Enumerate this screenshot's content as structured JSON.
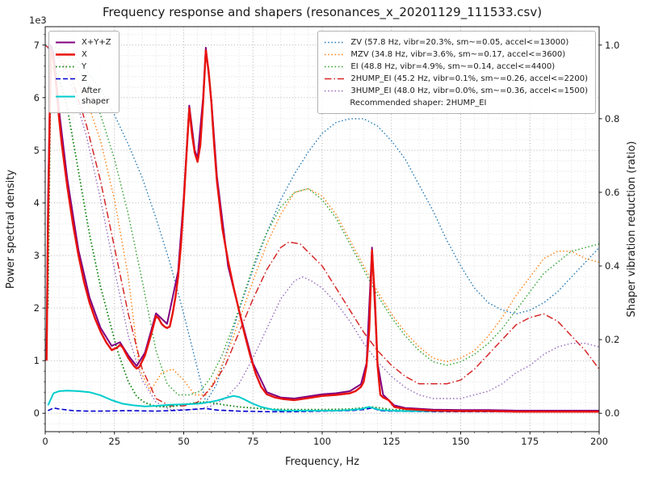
{
  "chart_data": {
    "type": "line",
    "title": "Frequency response and shapers (resonances_x_20201129_111533.csv)",
    "xlabel": "Frequency, Hz",
    "ylabel_left": "Power spectral density",
    "ylabel_right": "Shaper vibration reduction (ratio)",
    "y_left_multiplier": "1e3",
    "xlim": [
      0,
      200
    ],
    "x_ticks": [
      0,
      25,
      50,
      75,
      100,
      125,
      150,
      175,
      200
    ],
    "ylim_left": [
      0,
      7
    ],
    "y_ticks_left": [
      0,
      1,
      2,
      3,
      4,
      5,
      6,
      7
    ],
    "ylim_right": [
      0,
      1.0
    ],
    "y_ticks_right": [
      0.0,
      0.2,
      0.4,
      0.6,
      0.8,
      1.0
    ],
    "grid": true,
    "grid_major_color": "#a6a6a6",
    "grid_minor_color": "#d8d8d8",
    "legend_note": "Recommended shaper: 2HUMP_EI",
    "psd_y_unit": "1e3",
    "psd_series": [
      {
        "name": "x-plus-y-plus-z",
        "label": "X+Y+Z",
        "color": "#800080",
        "style": "solid",
        "width": 2,
        "axis": "left",
        "zorder": 5,
        "x": [
          0.5,
          1,
          2,
          3,
          5,
          8,
          12,
          16,
          20,
          24,
          27,
          30,
          33,
          36,
          40,
          44,
          48,
          50,
          52,
          54,
          55,
          57,
          58,
          60,
          62,
          66,
          70,
          75,
          80,
          85,
          90,
          95,
          100,
          105,
          110,
          114,
          116,
          118,
          120,
          122,
          126,
          130,
          140,
          150,
          160,
          170,
          180,
          190,
          200
        ],
        "y": [
          1.2,
          4.0,
          7.0,
          6.85,
          5.75,
          4.45,
          3.1,
          2.2,
          1.62,
          1.28,
          1.35,
          1.1,
          0.9,
          1.15,
          1.9,
          1.7,
          2.7,
          4.1,
          5.85,
          5.0,
          4.85,
          6.0,
          6.95,
          5.95,
          4.5,
          2.8,
          1.95,
          0.95,
          0.4,
          0.3,
          0.28,
          0.32,
          0.36,
          0.38,
          0.42,
          0.55,
          0.95,
          3.15,
          0.95,
          0.35,
          0.15,
          0.1,
          0.07,
          0.06,
          0.06,
          0.05,
          0.05,
          0.05,
          0.05
        ]
      },
      {
        "name": "x",
        "label": "X",
        "color": "#e8120b",
        "style": "solid",
        "width": 2.4,
        "axis": "left",
        "zorder": 6,
        "x": [
          0.5,
          1,
          2,
          3,
          4,
          5,
          6,
          8,
          10,
          12,
          14,
          16,
          18,
          20,
          22,
          24,
          26,
          27,
          28,
          30,
          32,
          33,
          34,
          36,
          38,
          40,
          41,
          42,
          43,
          44,
          45,
          46,
          47,
          48,
          49,
          50,
          51,
          52,
          53,
          54,
          55,
          56,
          57,
          58,
          59,
          60,
          61,
          62,
          64,
          66,
          68,
          70,
          72,
          74,
          76,
          78,
          80,
          83,
          86,
          90,
          95,
          100,
          105,
          110,
          112,
          114,
          115,
          116,
          117,
          118,
          119,
          120,
          121,
          122,
          124,
          126,
          130,
          140,
          150,
          160,
          170,
          180,
          190,
          200
        ],
        "y": [
          1.0,
          3.5,
          6.9,
          6.7,
          6.2,
          5.6,
          5.1,
          4.3,
          3.6,
          3.0,
          2.5,
          2.1,
          1.8,
          1.55,
          1.35,
          1.2,
          1.25,
          1.3,
          1.25,
          1.05,
          0.9,
          0.85,
          0.88,
          1.1,
          1.45,
          1.85,
          1.8,
          1.7,
          1.65,
          1.62,
          1.65,
          1.9,
          2.2,
          2.6,
          3.2,
          4.0,
          4.9,
          5.8,
          5.3,
          4.95,
          4.78,
          5.1,
          5.9,
          6.9,
          6.5,
          5.9,
          5.1,
          4.4,
          3.5,
          2.9,
          2.4,
          1.95,
          1.5,
          1.1,
          0.75,
          0.5,
          0.36,
          0.3,
          0.27,
          0.25,
          0.29,
          0.33,
          0.35,
          0.38,
          0.42,
          0.5,
          0.6,
          0.9,
          1.6,
          3.1,
          2.2,
          0.9,
          0.35,
          0.3,
          0.25,
          0.12,
          0.08,
          0.05,
          0.04,
          0.04,
          0.03,
          0.03,
          0.03,
          0.03
        ]
      },
      {
        "name": "y",
        "label": "Y",
        "color": "#007f00",
        "style": "dotted",
        "width": 1.8,
        "axis": "left",
        "zorder": 3,
        "x": [
          1,
          2,
          4,
          6,
          8,
          10,
          12,
          14,
          16,
          18,
          20,
          23,
          26,
          28,
          30,
          33,
          36,
          40,
          45,
          50,
          55,
          58,
          62,
          66,
          70,
          75,
          80,
          90,
          100,
          110,
          118,
          125,
          140,
          160,
          180,
          200
        ],
        "y": [
          2.0,
          6.6,
          6.5,
          6.2,
          5.8,
          5.2,
          4.6,
          4.0,
          3.4,
          2.9,
          2.4,
          1.8,
          1.2,
          0.9,
          0.6,
          0.32,
          0.2,
          0.13,
          0.12,
          0.17,
          0.2,
          0.22,
          0.18,
          0.15,
          0.12,
          0.1,
          0.08,
          0.07,
          0.07,
          0.08,
          0.12,
          0.07,
          0.05,
          0.05,
          0.05,
          0.05
        ]
      },
      {
        "name": "z",
        "label": "Z",
        "color": "#0000cc",
        "style": "dashed",
        "width": 1.6,
        "axis": "left",
        "zorder": 3,
        "x": [
          1,
          3,
          5,
          10,
          15,
          20,
          30,
          40,
          50,
          55,
          58,
          62,
          70,
          80,
          90,
          100,
          110,
          115,
          118,
          121,
          125,
          140,
          160,
          180,
          200
        ],
        "y": [
          0.05,
          0.1,
          0.08,
          0.05,
          0.04,
          0.04,
          0.05,
          0.04,
          0.06,
          0.08,
          0.09,
          0.06,
          0.04,
          0.03,
          0.03,
          0.04,
          0.05,
          0.07,
          0.1,
          0.05,
          0.04,
          0.03,
          0.03,
          0.03,
          0.03
        ]
      },
      {
        "name": "after-shaper",
        "label": "After\nshaper",
        "color": "#00cccc",
        "style": "solid",
        "width": 2,
        "axis": "left",
        "zorder": 4,
        "x": [
          1,
          3,
          5,
          8,
          12,
          16,
          20,
          24,
          28,
          32,
          36,
          40,
          45,
          50,
          55,
          58,
          62,
          65,
          68,
          70,
          72,
          75,
          78,
          82,
          86,
          90,
          95,
          100,
          105,
          110,
          114,
          117,
          119,
          121,
          125,
          130,
          140,
          150,
          160,
          170,
          180,
          190,
          200
        ],
        "y": [
          0.15,
          0.38,
          0.42,
          0.43,
          0.42,
          0.4,
          0.34,
          0.25,
          0.18,
          0.15,
          0.13,
          0.14,
          0.16,
          0.17,
          0.18,
          0.2,
          0.24,
          0.29,
          0.33,
          0.31,
          0.26,
          0.18,
          0.12,
          0.07,
          0.05,
          0.05,
          0.05,
          0.05,
          0.05,
          0.06,
          0.08,
          0.12,
          0.09,
          0.06,
          0.05,
          0.04,
          0.04,
          0.04,
          0.04,
          0.04,
          0.04,
          0.04,
          0.05
        ]
      }
    ],
    "shaper_series": [
      {
        "name": "zv",
        "label": "ZV (57.8 Hz, vibr=20.3%, sm~=0.05, accel<=13000)",
        "color": "#1f77b4",
        "style": "dotted",
        "width": 1.4,
        "axis": "right",
        "zorder": 2,
        "x": [
          0,
          5,
          10,
          15,
          20,
          25,
          30,
          35,
          40,
          45,
          50,
          55,
          58,
          62,
          66,
          70,
          75,
          80,
          85,
          90,
          95,
          100,
          105,
          110,
          115,
          120,
          125,
          130,
          135,
          140,
          145,
          150,
          155,
          160,
          165,
          170,
          175,
          180,
          185,
          190,
          195,
          200
        ],
        "y": [
          1.0,
          0.99,
          0.97,
          0.93,
          0.88,
          0.81,
          0.73,
          0.64,
          0.53,
          0.41,
          0.27,
          0.12,
          0.03,
          0.08,
          0.18,
          0.28,
          0.39,
          0.49,
          0.58,
          0.65,
          0.71,
          0.76,
          0.79,
          0.8,
          0.8,
          0.78,
          0.74,
          0.69,
          0.62,
          0.55,
          0.47,
          0.4,
          0.34,
          0.3,
          0.28,
          0.27,
          0.28,
          0.3,
          0.33,
          0.37,
          0.41,
          0.45
        ]
      },
      {
        "name": "mzv",
        "label": "MZV (34.8 Hz, vibr=3.6%, sm~=0.17, accel<=3600)",
        "color": "#ff7f0e",
        "style": "dotted",
        "width": 1.4,
        "axis": "right",
        "zorder": 2,
        "x": [
          0,
          5,
          10,
          15,
          20,
          25,
          30,
          34,
          38,
          42,
          46,
          50,
          54,
          58,
          62,
          66,
          70,
          75,
          80,
          85,
          90,
          95,
          100,
          105,
          110,
          115,
          120,
          125,
          130,
          135,
          140,
          145,
          150,
          155,
          160,
          165,
          170,
          175,
          180,
          185,
          190,
          195,
          200
        ],
        "y": [
          1.0,
          0.98,
          0.93,
          0.85,
          0.74,
          0.58,
          0.37,
          0.12,
          0.06,
          0.11,
          0.12,
          0.09,
          0.05,
          0.05,
          0.1,
          0.17,
          0.25,
          0.36,
          0.46,
          0.54,
          0.6,
          0.61,
          0.59,
          0.54,
          0.47,
          0.4,
          0.33,
          0.27,
          0.22,
          0.18,
          0.15,
          0.14,
          0.15,
          0.17,
          0.21,
          0.26,
          0.32,
          0.37,
          0.42,
          0.44,
          0.44,
          0.42,
          0.41
        ]
      },
      {
        "name": "ei",
        "label": "EI (48.8 Hz, vibr=4.9%, sm~=0.14, accel<=4400)",
        "color": "#2ca02c",
        "style": "dotted",
        "width": 1.4,
        "axis": "right",
        "zorder": 2,
        "x": [
          0,
          5,
          10,
          15,
          20,
          25,
          30,
          35,
          40,
          44,
          48,
          52,
          56,
          60,
          64,
          68,
          72,
          76,
          80,
          85,
          90,
          95,
          100,
          105,
          110,
          115,
          120,
          125,
          130,
          135,
          140,
          145,
          150,
          155,
          160,
          165,
          170,
          175,
          180,
          185,
          190,
          195,
          200
        ],
        "y": [
          1.0,
          0.99,
          0.96,
          0.9,
          0.81,
          0.69,
          0.54,
          0.36,
          0.17,
          0.08,
          0.05,
          0.05,
          0.06,
          0.1,
          0.16,
          0.24,
          0.33,
          0.42,
          0.49,
          0.56,
          0.6,
          0.61,
          0.58,
          0.53,
          0.46,
          0.39,
          0.32,
          0.26,
          0.21,
          0.17,
          0.14,
          0.13,
          0.14,
          0.16,
          0.19,
          0.23,
          0.28,
          0.33,
          0.38,
          0.41,
          0.44,
          0.45,
          0.46
        ]
      },
      {
        "name": "2hump-ei",
        "label": "2HUMP_EI (45.2 Hz, vibr=0.1%, sm~=0.26, accel<=2200)",
        "color": "#d62728",
        "style": "dashdot",
        "width": 1.5,
        "axis": "right",
        "zorder": 2,
        "x": [
          0,
          5,
          10,
          15,
          20,
          25,
          30,
          35,
          40,
          45,
          50,
          55,
          60,
          65,
          70,
          75,
          80,
          85,
          88,
          92,
          96,
          100,
          105,
          110,
          115,
          120,
          125,
          130,
          135,
          140,
          145,
          150,
          155,
          160,
          165,
          170,
          175,
          180,
          185,
          190,
          195,
          200
        ],
        "y": [
          1.0,
          0.97,
          0.9,
          0.78,
          0.63,
          0.45,
          0.27,
          0.12,
          0.04,
          0.02,
          0.02,
          0.03,
          0.07,
          0.13,
          0.22,
          0.31,
          0.39,
          0.45,
          0.465,
          0.46,
          0.43,
          0.4,
          0.34,
          0.28,
          0.22,
          0.17,
          0.13,
          0.1,
          0.08,
          0.08,
          0.08,
          0.09,
          0.12,
          0.16,
          0.2,
          0.24,
          0.26,
          0.27,
          0.25,
          0.21,
          0.17,
          0.12
        ]
      },
      {
        "name": "3hump-ei",
        "label": "3HUMP_EI (48.0 Hz, vibr=0.0%, sm~=0.36, accel<=1500)",
        "color": "#9467bd",
        "style": "dotted",
        "width": 1.4,
        "axis": "right",
        "zorder": 2,
        "x": [
          0,
          5,
          10,
          15,
          20,
          25,
          30,
          35,
          40,
          45,
          50,
          55,
          60,
          65,
          70,
          75,
          80,
          85,
          90,
          93,
          96,
          100,
          105,
          110,
          115,
          120,
          125,
          130,
          135,
          140,
          145,
          150,
          155,
          160,
          165,
          170,
          175,
          180,
          185,
          190,
          195,
          200
        ],
        "y": [
          1.0,
          0.96,
          0.88,
          0.75,
          0.58,
          0.39,
          0.21,
          0.09,
          0.03,
          0.01,
          0.01,
          0.01,
          0.02,
          0.04,
          0.08,
          0.15,
          0.23,
          0.31,
          0.36,
          0.37,
          0.36,
          0.34,
          0.3,
          0.25,
          0.19,
          0.14,
          0.1,
          0.07,
          0.05,
          0.04,
          0.04,
          0.04,
          0.05,
          0.06,
          0.08,
          0.11,
          0.13,
          0.16,
          0.18,
          0.19,
          0.19,
          0.18
        ]
      }
    ]
  }
}
